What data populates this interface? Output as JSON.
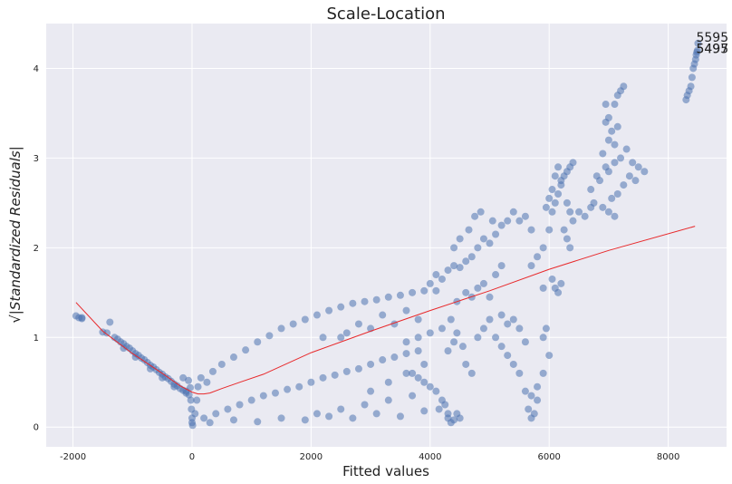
{
  "chart_data": {
    "type": "scatter",
    "title": "Scale-Location",
    "xlabel": "Fitted values",
    "ylabel": "√|Standardized Residuals|",
    "xlim": [
      -2450,
      8980
    ],
    "ylim": [
      -0.22,
      4.5
    ],
    "xticks": [
      -2000,
      0,
      2000,
      4000,
      6000,
      8000
    ],
    "yticks": [
      0,
      1,
      2,
      3,
      4
    ],
    "grid": true,
    "colors": {
      "background": "#eaeaf2",
      "grid": "#ffffff",
      "points": "#4c72b0",
      "lowess": "#e8292b"
    },
    "annotations": [
      {
        "text": "5595",
        "x": 8470,
        "y": 4.28
      },
      {
        "text": "5495",
        "x": 8470,
        "y": 4.15
      },
      {
        "text": "5497",
        "x": 8470,
        "y": 4.15
      }
    ],
    "lowess": {
      "x": [
        -1950,
        -1500,
        -1000,
        -500,
        -200,
        0,
        100,
        200,
        300,
        500,
        800,
        1200,
        2000,
        3000,
        4000,
        5000,
        6000,
        7000,
        8450
      ],
      "y": [
        1.39,
        1.07,
        0.82,
        0.6,
        0.46,
        0.39,
        0.37,
        0.37,
        0.38,
        0.43,
        0.5,
        0.59,
        0.83,
        1.07,
        1.3,
        1.52,
        1.76,
        1.97,
        2.24
      ]
    },
    "points": [
      [
        -1950,
        1.24
      ],
      [
        -1900,
        1.22
      ],
      [
        -1850,
        1.21
      ],
      [
        -1850,
        1.22
      ],
      [
        -1500,
        1.06
      ],
      [
        -1430,
        1.05
      ],
      [
        -1380,
        1.17
      ],
      [
        -1300,
        1.0
      ],
      [
        -1250,
        0.98
      ],
      [
        -1200,
        0.95
      ],
      [
        -1150,
        0.93
      ],
      [
        -1100,
        0.9
      ],
      [
        -1050,
        0.88
      ],
      [
        -1000,
        0.85
      ],
      [
        -950,
        0.82
      ],
      [
        -900,
        0.8
      ],
      [
        -850,
        0.77
      ],
      [
        -800,
        0.75
      ],
      [
        -750,
        0.72
      ],
      [
        -700,
        0.69
      ],
      [
        -650,
        0.67
      ],
      [
        -600,
        0.64
      ],
      [
        -550,
        0.61
      ],
      [
        -500,
        0.59
      ],
      [
        -450,
        0.56
      ],
      [
        -400,
        0.54
      ],
      [
        -350,
        0.51
      ],
      [
        -300,
        0.48
      ],
      [
        -250,
        0.46
      ],
      [
        -200,
        0.43
      ],
      [
        -150,
        0.41
      ],
      [
        -100,
        0.38
      ],
      [
        -50,
        0.36
      ],
      [
        -1150,
        0.88
      ],
      [
        -950,
        0.78
      ],
      [
        -700,
        0.65
      ],
      [
        -500,
        0.55
      ],
      [
        -300,
        0.45
      ],
      [
        -150,
        0.55
      ],
      [
        -100,
        0.4
      ],
      [
        -60,
        0.52
      ],
      [
        -30,
        0.44
      ],
      [
        -20,
        0.3
      ],
      [
        -10,
        0.2
      ],
      [
        0,
        0.1
      ],
      [
        0,
        0.05
      ],
      [
        10,
        0.02
      ],
      [
        50,
        0.15
      ],
      [
        80,
        0.3
      ],
      [
        100,
        0.45
      ],
      [
        150,
        0.55
      ],
      [
        250,
        0.5
      ],
      [
        350,
        0.62
      ],
      [
        500,
        0.7
      ],
      [
        700,
        0.78
      ],
      [
        900,
        0.86
      ],
      [
        1100,
        0.95
      ],
      [
        1300,
        1.02
      ],
      [
        1500,
        1.1
      ],
      [
        1700,
        1.15
      ],
      [
        1900,
        1.2
      ],
      [
        2100,
        1.25
      ],
      [
        2300,
        1.3
      ],
      [
        2500,
        1.34
      ],
      [
        2700,
        1.38
      ],
      [
        2900,
        1.4
      ],
      [
        3100,
        1.42
      ],
      [
        3300,
        1.45
      ],
      [
        3500,
        1.47
      ],
      [
        3700,
        1.5
      ],
      [
        3900,
        1.52
      ],
      [
        4100,
        1.52
      ],
      [
        200,
        0.1
      ],
      [
        400,
        0.15
      ],
      [
        600,
        0.2
      ],
      [
        800,
        0.25
      ],
      [
        1000,
        0.3
      ],
      [
        1200,
        0.35
      ],
      [
        1400,
        0.38
      ],
      [
        1600,
        0.42
      ],
      [
        1800,
        0.45
      ],
      [
        2000,
        0.5
      ],
      [
        2200,
        0.55
      ],
      [
        2400,
        0.58
      ],
      [
        2600,
        0.62
      ],
      [
        2800,
        0.65
      ],
      [
        3000,
        0.7
      ],
      [
        3200,
        0.75
      ],
      [
        3400,
        0.78
      ],
      [
        3600,
        0.82
      ],
      [
        3800,
        0.85
      ],
      [
        300,
        0.05
      ],
      [
        700,
        0.08
      ],
      [
        1100,
        0.06
      ],
      [
        1500,
        0.1
      ],
      [
        1900,
        0.08
      ],
      [
        2300,
        0.12
      ],
      [
        2700,
        0.1
      ],
      [
        3100,
        0.15
      ],
      [
        3500,
        0.12
      ],
      [
        3900,
        0.18
      ],
      [
        4300,
        0.15
      ],
      [
        2100,
        0.15
      ],
      [
        2500,
        0.2
      ],
      [
        2900,
        0.25
      ],
      [
        3300,
        0.3
      ],
      [
        3700,
        0.35
      ],
      [
        2200,
        1.0
      ],
      [
        2600,
        1.05
      ],
      [
        3000,
        1.1
      ],
      [
        3400,
        1.15
      ],
      [
        3800,
        1.2
      ],
      [
        2500,
        1.0
      ],
      [
        2800,
        1.15
      ],
      [
        3200,
        1.25
      ],
      [
        3600,
        1.3
      ],
      [
        3000,
        0.4
      ],
      [
        3300,
        0.5
      ],
      [
        3600,
        0.6
      ],
      [
        3900,
        0.7
      ],
      [
        3600,
        0.95
      ],
      [
        3800,
        1.0
      ],
      [
        4000,
        1.05
      ],
      [
        3700,
        0.6
      ],
      [
        3800,
        0.55
      ],
      [
        3900,
        0.5
      ],
      [
        4000,
        0.45
      ],
      [
        4100,
        0.4
      ],
      [
        4150,
        0.2
      ],
      [
        4200,
        0.3
      ],
      [
        4250,
        0.25
      ],
      [
        4300,
        0.1
      ],
      [
        4350,
        0.05
      ],
      [
        4400,
        0.08
      ],
      [
        4450,
        0.15
      ],
      [
        4500,
        0.1
      ],
      [
        4300,
        0.85
      ],
      [
        4400,
        0.95
      ],
      [
        4200,
        1.1
      ],
      [
        4350,
        1.2
      ],
      [
        4450,
        1.05
      ],
      [
        4550,
        0.9
      ],
      [
        4600,
        0.7
      ],
      [
        4700,
        0.6
      ],
      [
        4000,
        1.6
      ],
      [
        4100,
        1.7
      ],
      [
        4200,
        1.65
      ],
      [
        4300,
        1.75
      ],
      [
        4400,
        1.8
      ],
      [
        4500,
        1.78
      ],
      [
        4600,
        1.85
      ],
      [
        4700,
        1.9
      ],
      [
        4800,
        2.0
      ],
      [
        4900,
        2.1
      ],
      [
        5000,
        2.05
      ],
      [
        5100,
        2.15
      ],
      [
        5200,
        2.25
      ],
      [
        5300,
        2.3
      ],
      [
        5400,
        2.4
      ],
      [
        5500,
        2.3
      ],
      [
        5600,
        2.35
      ],
      [
        5700,
        2.2
      ],
      [
        4400,
        2.0
      ],
      [
        4500,
        2.1
      ],
      [
        4650,
        2.2
      ],
      [
        4750,
        2.35
      ],
      [
        4850,
        2.4
      ],
      [
        5050,
        2.3
      ],
      [
        4450,
        1.4
      ],
      [
        4600,
        1.5
      ],
      [
        4700,
        1.45
      ],
      [
        4800,
        1.55
      ],
      [
        4900,
        1.6
      ],
      [
        5000,
        1.45
      ],
      [
        5100,
        1.7
      ],
      [
        5200,
        1.8
      ],
      [
        5100,
        1.0
      ],
      [
        5200,
        0.9
      ],
      [
        5300,
        0.8
      ],
      [
        5400,
        0.7
      ],
      [
        5500,
        0.6
      ],
      [
        5600,
        0.4
      ],
      [
        5700,
        0.35
      ],
      [
        5800,
        0.3
      ],
      [
        5650,
        0.2
      ],
      [
        5700,
        0.1
      ],
      [
        5750,
        0.15
      ],
      [
        5800,
        0.45
      ],
      [
        5900,
        0.6
      ],
      [
        6000,
        0.8
      ],
      [
        5900,
        1.0
      ],
      [
        5950,
        1.1
      ],
      [
        5600,
        0.95
      ],
      [
        5500,
        1.1
      ],
      [
        5400,
        1.2
      ],
      [
        5300,
        1.15
      ],
      [
        5200,
        1.25
      ],
      [
        5000,
        1.2
      ],
      [
        4900,
        1.1
      ],
      [
        4800,
        1.0
      ],
      [
        5700,
        1.8
      ],
      [
        5800,
        1.9
      ],
      [
        5900,
        2.0
      ],
      [
        6000,
        2.2
      ],
      [
        6050,
        2.4
      ],
      [
        6100,
        2.5
      ],
      [
        6150,
        2.6
      ],
      [
        6200,
        2.7
      ],
      [
        6250,
        2.8
      ],
      [
        6300,
        2.85
      ],
      [
        6350,
        2.9
      ],
      [
        6400,
        2.95
      ],
      [
        6100,
        2.8
      ],
      [
        6150,
        2.9
      ],
      [
        6200,
        2.75
      ],
      [
        6050,
        2.65
      ],
      [
        6000,
        2.55
      ],
      [
        5950,
        2.45
      ],
      [
        6300,
        2.5
      ],
      [
        6350,
        2.4
      ],
      [
        6400,
        2.3
      ],
      [
        6500,
        2.4
      ],
      [
        6600,
        2.35
      ],
      [
        6700,
        2.45
      ],
      [
        6100,
        1.55
      ],
      [
        6150,
        1.5
      ],
      [
        6200,
        1.6
      ],
      [
        6050,
        1.65
      ],
      [
        5900,
        1.55
      ],
      [
        6250,
        2.2
      ],
      [
        6300,
        2.1
      ],
      [
        6350,
        2.0
      ],
      [
        6950,
        3.4
      ],
      [
        7000,
        3.45
      ],
      [
        7050,
        3.3
      ],
      [
        7100,
        3.6
      ],
      [
        7150,
        3.7
      ],
      [
        7200,
        3.75
      ],
      [
        7250,
        3.8
      ],
      [
        7000,
        3.2
      ],
      [
        7100,
        3.15
      ],
      [
        6900,
        3.05
      ],
      [
        6950,
        2.9
      ],
      [
        7000,
        2.85
      ],
      [
        7100,
        2.95
      ],
      [
        7200,
        3.0
      ],
      [
        7300,
        3.1
      ],
      [
        7400,
        2.95
      ],
      [
        7500,
        2.9
      ],
      [
        7600,
        2.85
      ],
      [
        6800,
        2.8
      ],
      [
        6850,
        2.75
      ],
      [
        6700,
        2.65
      ],
      [
        6750,
        2.5
      ],
      [
        6900,
        2.45
      ],
      [
        7000,
        2.4
      ],
      [
        7100,
        2.35
      ],
      [
        7050,
        2.55
      ],
      [
        7150,
        2.6
      ],
      [
        7250,
        2.7
      ],
      [
        7350,
        2.8
      ],
      [
        7450,
        2.75
      ],
      [
        6950,
        3.6
      ],
      [
        7150,
        3.35
      ],
      [
        8300,
        3.65
      ],
      [
        8320,
        3.7
      ],
      [
        8350,
        3.75
      ],
      [
        8380,
        3.8
      ],
      [
        8400,
        3.9
      ],
      [
        8420,
        4.0
      ],
      [
        8440,
        4.05
      ],
      [
        8460,
        4.1
      ],
      [
        8470,
        4.15
      ],
      [
        8480,
        4.18
      ],
      [
        8490,
        4.2
      ],
      [
        8500,
        4.28
      ]
    ]
  }
}
